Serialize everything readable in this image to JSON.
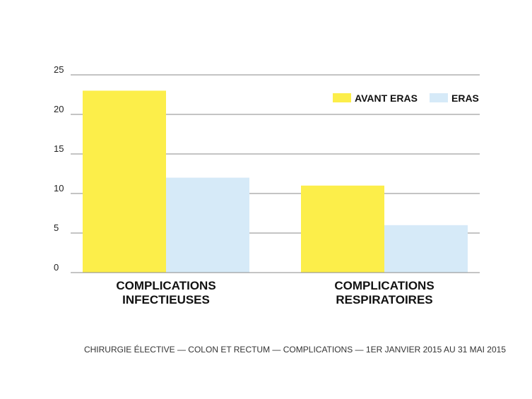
{
  "chart_data": {
    "type": "bar",
    "categories": [
      [
        "COMPLICATIONS",
        "INFECTIEUSES"
      ],
      [
        "COMPLICATIONS",
        "RESPIRATOIRES"
      ]
    ],
    "series": [
      {
        "name": "AVANT ERAS",
        "color": "#fcee4a",
        "values": [
          23,
          11
        ]
      },
      {
        "name": "ERAS",
        "color": "#d6eaf8",
        "values": [
          12,
          6
        ]
      }
    ],
    "yticks": [
      0,
      5,
      10,
      15,
      20,
      25
    ],
    "ylim": [
      0,
      25
    ],
    "grid": true,
    "legend_position": "top-right",
    "caption": "CHIRURGIE ÉLECTIVE — COLON ET RECTUM — COMPLICATIONS — 1ER JANVIER 2015 AU 31 MAI 2015"
  }
}
